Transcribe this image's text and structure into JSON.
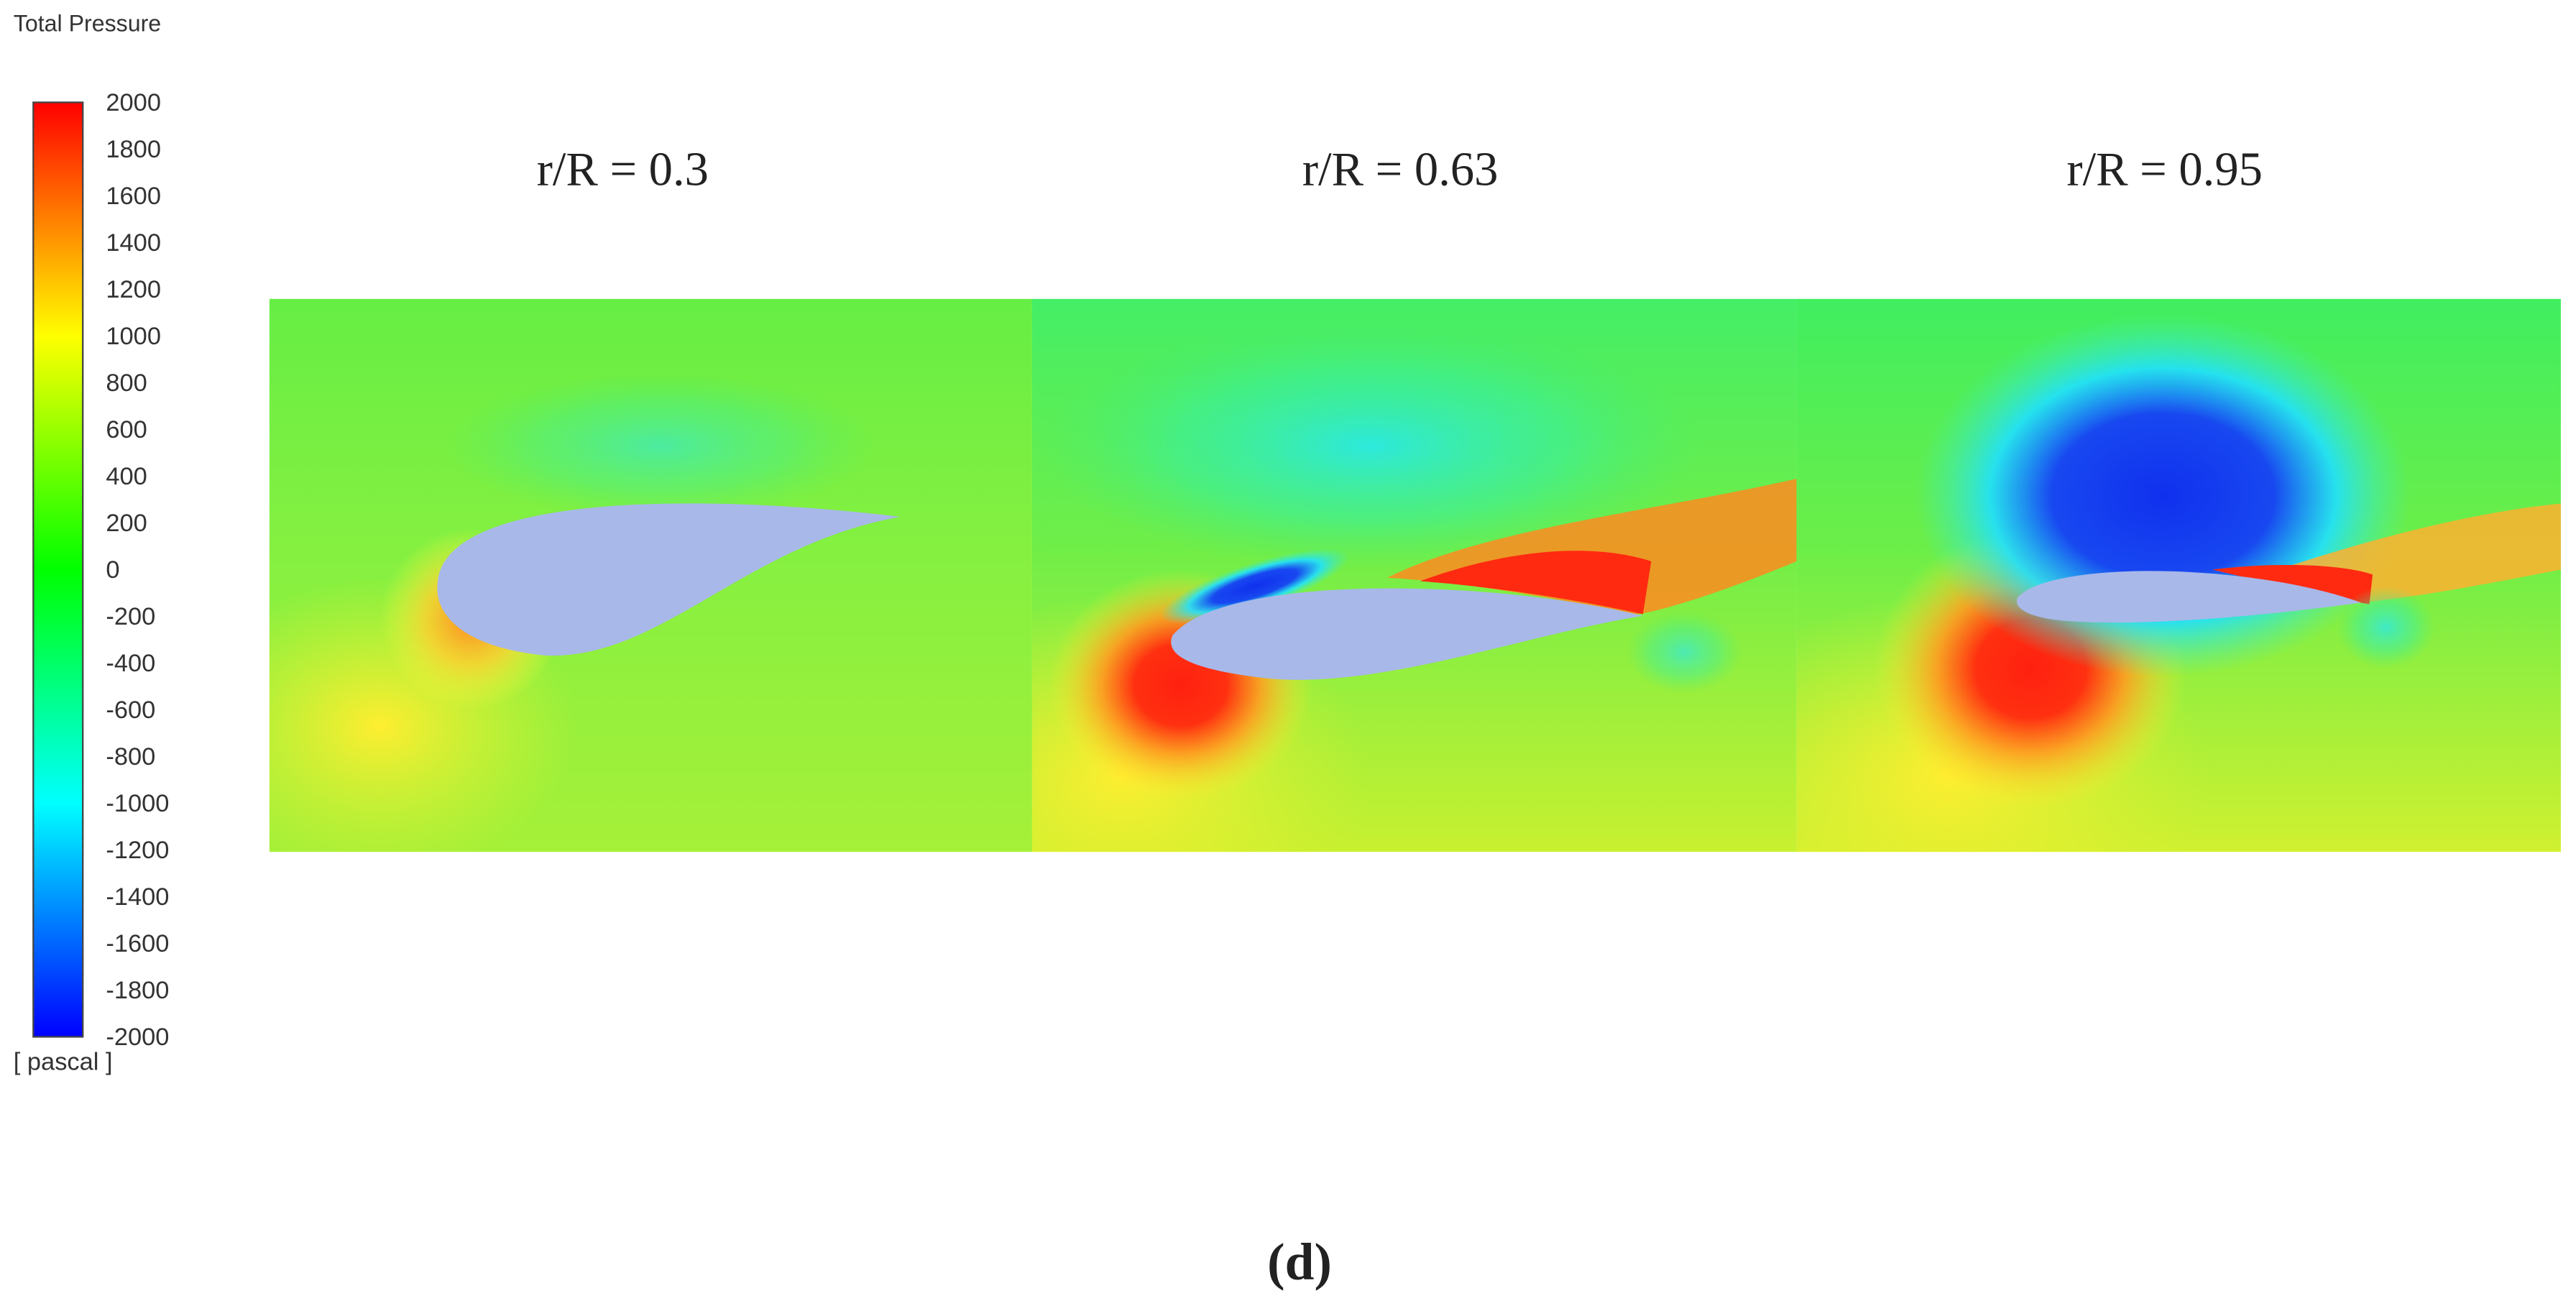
{
  "legend": {
    "title": "Total Pressure",
    "unit": "[ pascal ]",
    "ticks": [
      2000,
      1800,
      1600,
      1400,
      1200,
      1000,
      800,
      600,
      400,
      200,
      0,
      -200,
      -400,
      -600,
      -800,
      -1000,
      -1200,
      -1400,
      -1600,
      -1800,
      -2000
    ]
  },
  "panels": [
    {
      "label": "r/R = 0.3"
    },
    {
      "label": "r/R = 0.63"
    },
    {
      "label": "r/R = 0.95"
    }
  ],
  "caption": "(d)"
}
